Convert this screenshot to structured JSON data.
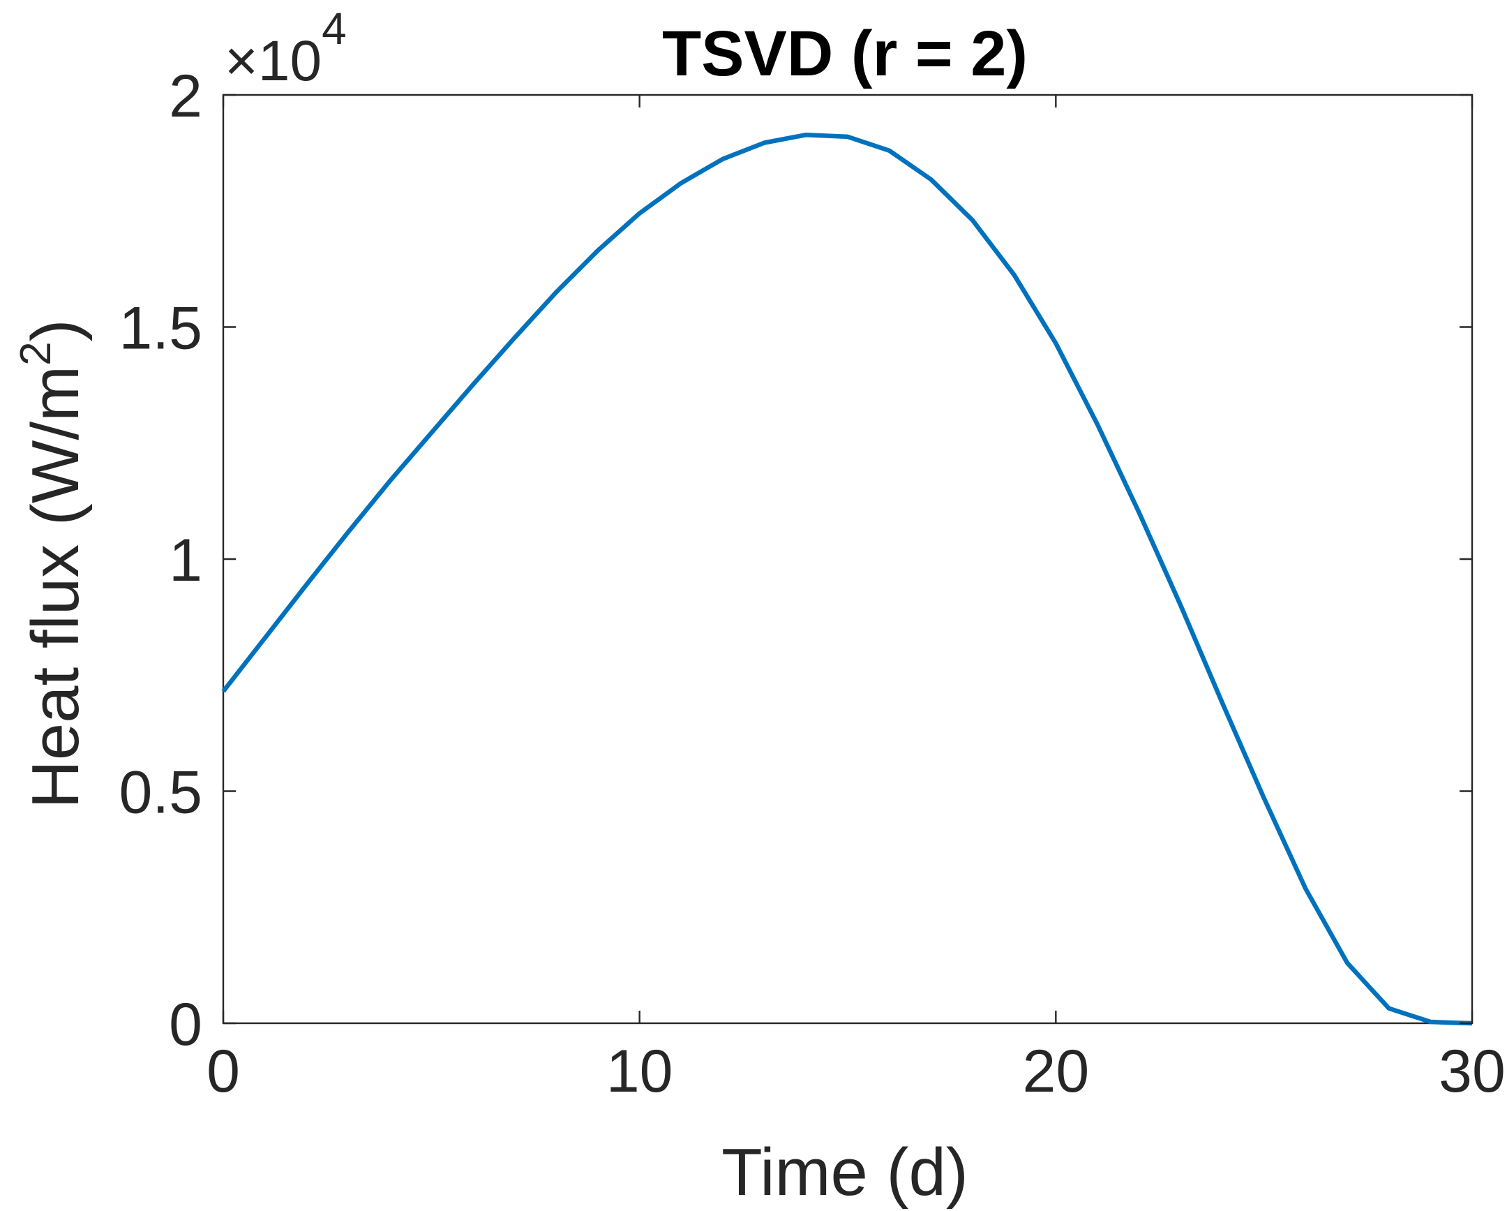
{
  "chart_data": {
    "type": "line",
    "title": "TSVD (r = 2)",
    "xlabel": "Time (d)",
    "ylabel_main": "Heat flux (W/m",
    "ylabel_sup": "2",
    "ylabel_close": ")",
    "y_multiplier": {
      "base": "×10",
      "exponent": "4"
    },
    "xlim": [
      0,
      30
    ],
    "ylim": [
      0,
      20000
    ],
    "x_ticks": [
      0,
      10,
      20,
      30
    ],
    "x_tick_labels": [
      "0",
      "10",
      "20",
      "30"
    ],
    "y_ticks": [
      0,
      5000,
      10000,
      15000,
      20000
    ],
    "y_tick_labels": [
      "0",
      "0.5",
      "1",
      "1.5",
      "2"
    ],
    "grid": false,
    "series": [
      {
        "color": "#0072BD",
        "x": [
          0,
          1,
          2,
          3,
          4,
          5,
          6,
          7,
          8,
          9,
          10,
          11,
          12,
          13,
          14,
          15,
          16,
          17,
          18,
          19,
          20,
          21,
          22,
          23,
          24,
          25,
          26,
          27,
          28,
          29,
          29.5,
          30
        ],
        "y": [
          7150,
          8300,
          9450,
          10580,
          11680,
          12720,
          13760,
          14770,
          15750,
          16650,
          17450,
          18100,
          18620,
          18970,
          19140,
          19100,
          18800,
          18180,
          17300,
          16120,
          14650,
          12900,
          11000,
          9000,
          6900,
          4850,
          2900,
          1300,
          320,
          30,
          10,
          0
        ]
      }
    ]
  }
}
